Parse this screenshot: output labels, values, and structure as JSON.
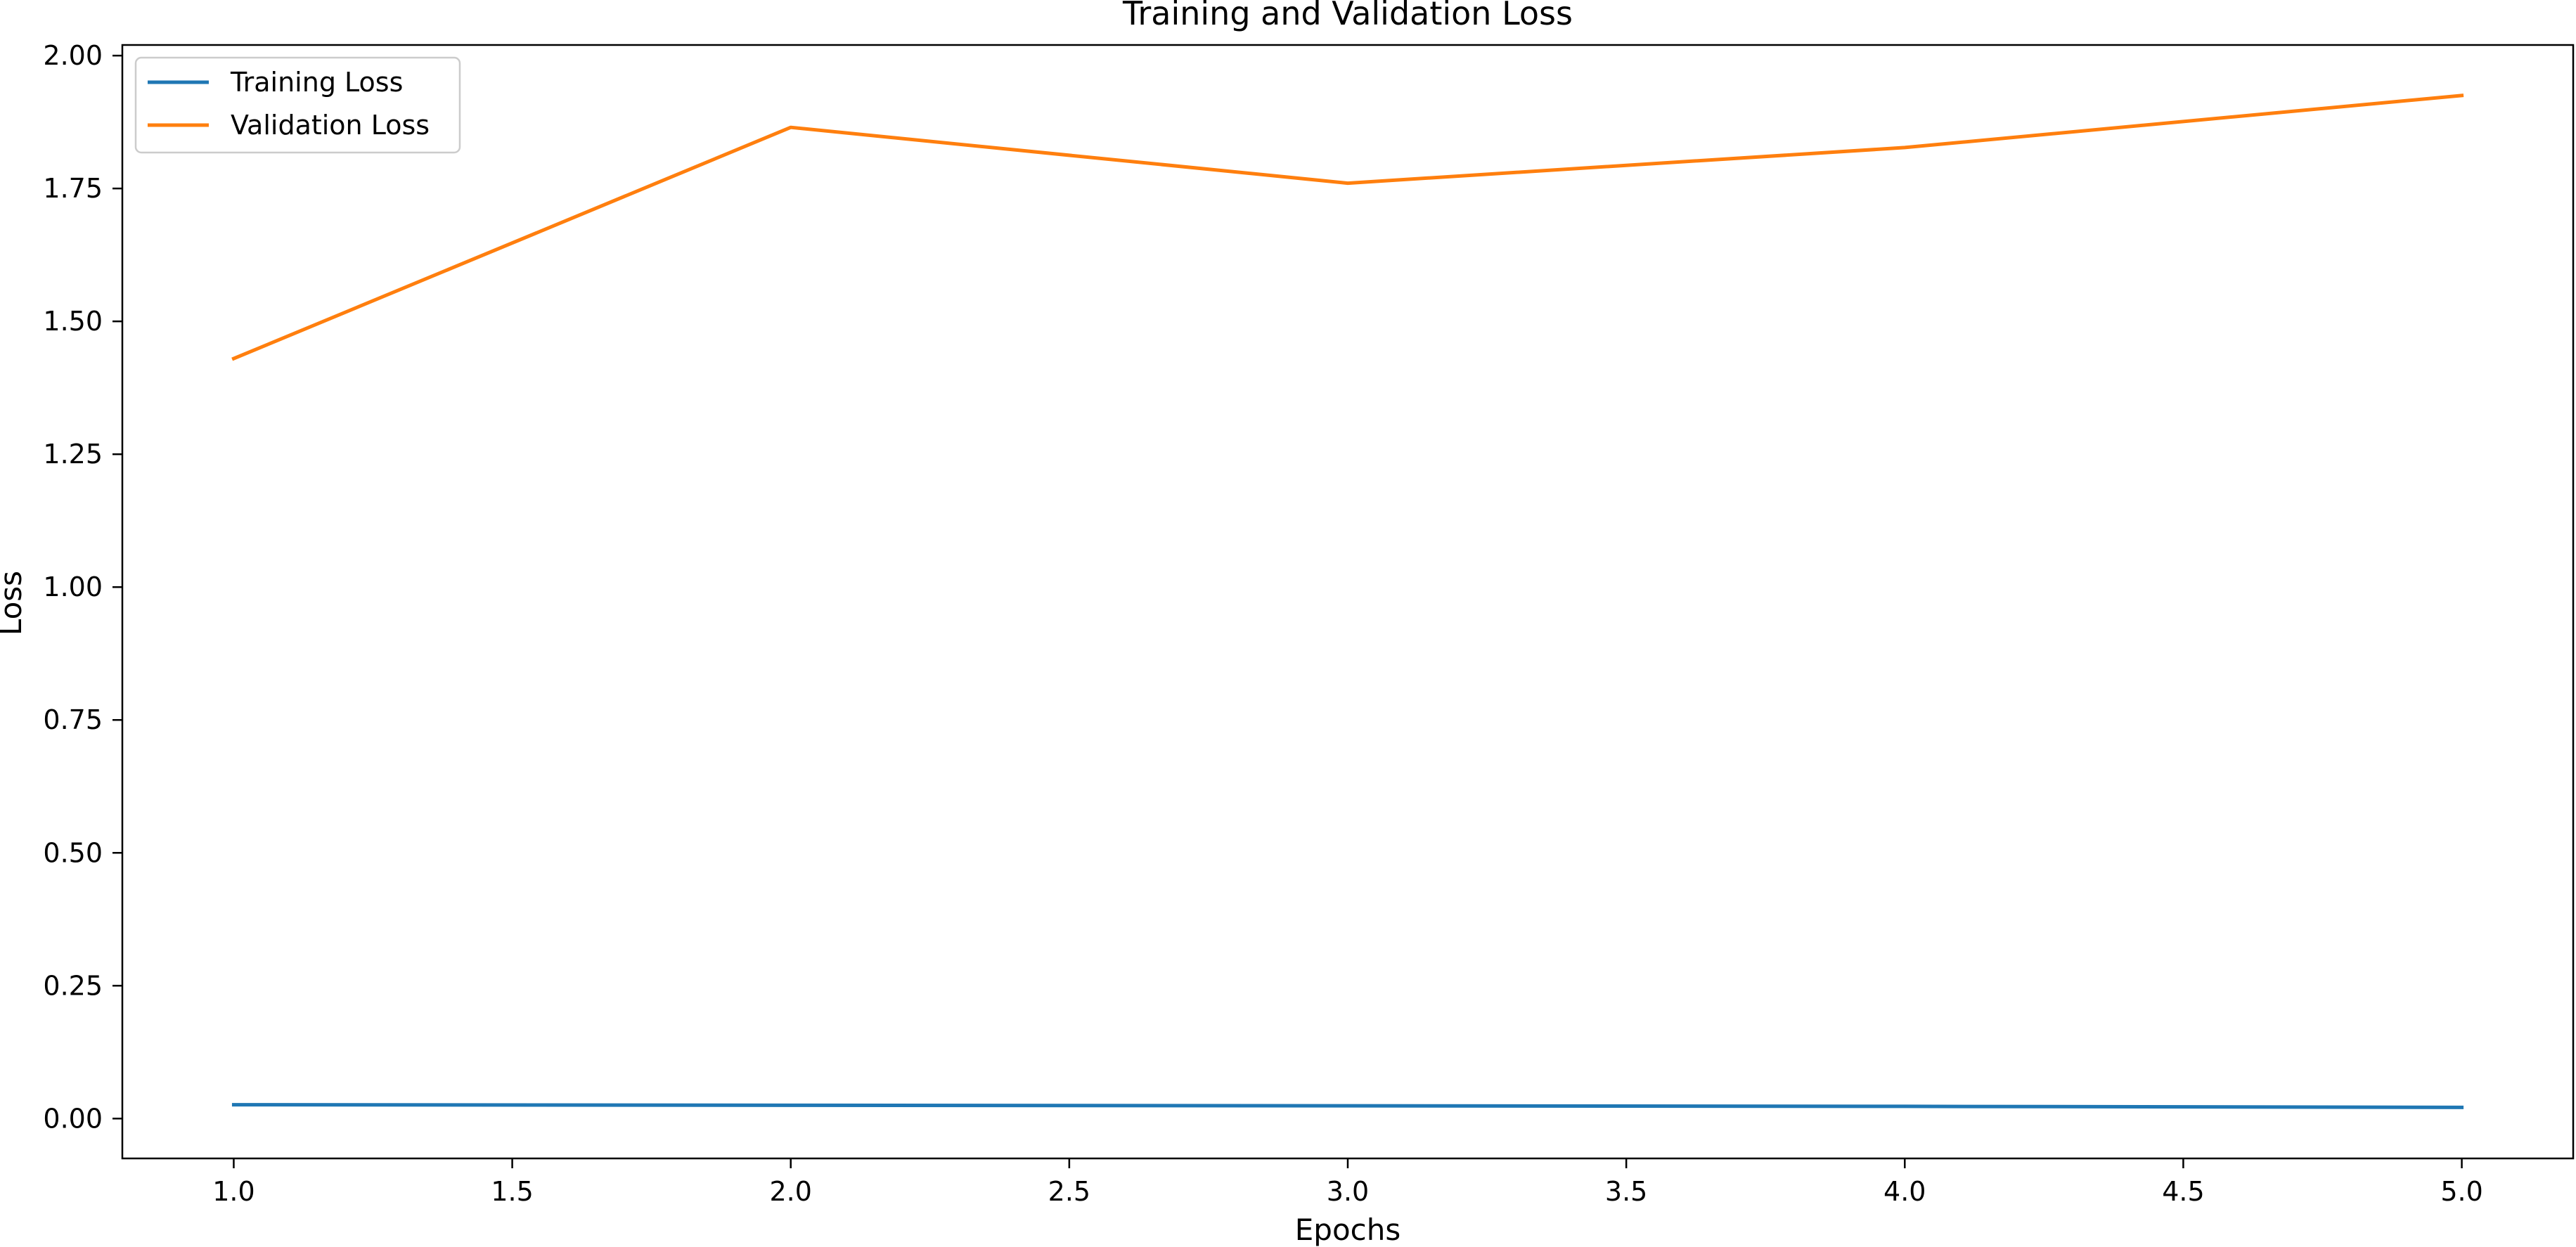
{
  "chart_data": {
    "type": "line",
    "title": "Training and Validation Loss",
    "xlabel": "Epochs",
    "ylabel": "Loss",
    "x": [
      1,
      2,
      3,
      4,
      5
    ],
    "xlim": [
      0.8,
      5.2
    ],
    "ylim": [
      -0.075,
      2.02
    ],
    "xticks": [
      1.0,
      1.5,
      2.0,
      2.5,
      3.0,
      3.5,
      4.0,
      4.5,
      5.0
    ],
    "xtick_labels": [
      "1.0",
      "1.5",
      "2.0",
      "2.5",
      "3.0",
      "3.5",
      "4.0",
      "4.5",
      "5.0"
    ],
    "yticks": [
      0.0,
      0.25,
      0.5,
      0.75,
      1.0,
      1.25,
      1.5,
      1.75,
      2.0
    ],
    "ytick_labels": [
      "0.00",
      "0.25",
      "0.50",
      "0.75",
      "1.00",
      "1.25",
      "1.50",
      "1.75",
      "2.00"
    ],
    "grid": false,
    "legend_position": "upper-left",
    "series": [
      {
        "name": "Training Loss",
        "color": "#1f77b4",
        "values": [
          0.026,
          0.025,
          0.024,
          0.023,
          0.021
        ]
      },
      {
        "name": "Validation Loss",
        "color": "#ff7f0e",
        "values": [
          1.43,
          1.865,
          1.76,
          1.827,
          1.925
        ]
      }
    ]
  }
}
